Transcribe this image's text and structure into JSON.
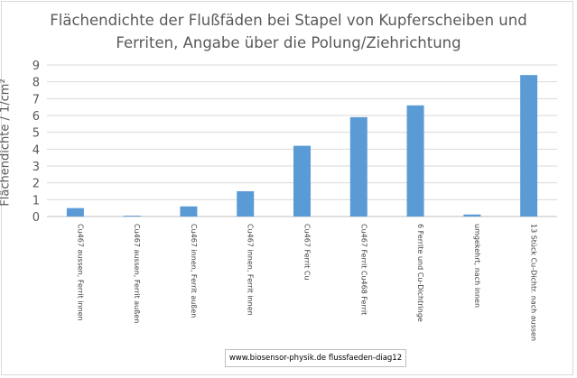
{
  "chart_data": {
    "type": "bar",
    "title_lines": [
      "Flächendichte der Flußfäden bei Stapel von Kupferscheiben und",
      "Ferriten, Angabe über die Polung/Ziehrichtung"
    ],
    "ylabel": "Flächendichte / 1/cm²",
    "xlabel": "",
    "ylim": [
      0,
      9
    ],
    "yticks": [
      0,
      1,
      2,
      3,
      4,
      5,
      6,
      7,
      8,
      9
    ],
    "grid": true,
    "legend": false,
    "bar_color": "#5b9bd5",
    "categories": [
      "Cu467 aussen, Ferrit innen",
      "Cu467 aussen, Ferrit außen",
      "Cu467 innen, Ferrit außen",
      "Cu467 innen, Ferrit innen",
      "Cu467 Ferrit Cu",
      "Cu467  Ferrit  Cu468  Ferrit",
      "6 Ferrite und Cu-Dichtringe",
      "umgekehrt, nach innen",
      "13 Stück Cu-Dichtr. nach aussen"
    ],
    "values": [
      0.5,
      0.05,
      0.6,
      1.5,
      4.2,
      5.9,
      6.6,
      0.12,
      8.4
    ]
  },
  "watermark": "www.biosensor-physik.de  flussfaeden-diag12"
}
